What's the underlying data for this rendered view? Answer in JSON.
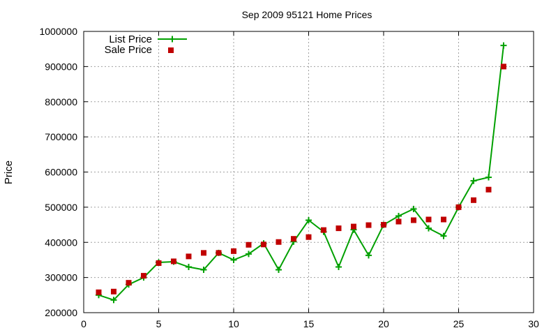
{
  "chart_data": {
    "type": "line",
    "title": "Sep 2009 95121 Home Prices",
    "xlabel": "",
    "ylabel": "Price",
    "xlim": [
      0,
      30
    ],
    "ylim": [
      200000,
      1000000
    ],
    "x_ticks": [
      0,
      5,
      10,
      15,
      20,
      25,
      30
    ],
    "y_ticks": [
      200000,
      300000,
      400000,
      500000,
      600000,
      700000,
      800000,
      900000,
      1000000
    ],
    "grid": true,
    "legend_position": "top-left",
    "series": [
      {
        "name": "List Price",
        "style": "line-with-plus-markers",
        "color": "#00a000",
        "x": [
          1,
          2,
          3,
          4,
          5,
          6,
          7,
          8,
          9,
          10,
          11,
          12,
          13,
          14,
          15,
          16,
          17,
          18,
          19,
          20,
          21,
          22,
          23,
          24,
          25,
          26,
          27,
          28
        ],
        "values": [
          250000,
          236000,
          280000,
          300000,
          343000,
          345000,
          330000,
          322000,
          370000,
          350000,
          367000,
          397000,
          322000,
          402000,
          463000,
          430000,
          330000,
          436000,
          363000,
          450000,
          475000,
          495000,
          440000,
          418000,
          500000,
          575000,
          585000,
          960000
        ]
      },
      {
        "name": "Sale Price",
        "style": "square-markers",
        "color": "#c00000",
        "x": [
          1,
          2,
          3,
          4,
          5,
          6,
          7,
          8,
          9,
          10,
          11,
          12,
          13,
          14,
          15,
          16,
          17,
          18,
          19,
          20,
          21,
          22,
          23,
          24,
          25,
          26,
          27,
          28
        ],
        "values": [
          258000,
          260000,
          285000,
          305000,
          341000,
          346000,
          360000,
          370000,
          370000,
          375000,
          393000,
          394000,
          401000,
          410000,
          415000,
          435000,
          440000,
          445000,
          449000,
          450000,
          459000,
          463000,
          465000,
          465000,
          500000,
          520000,
          550000,
          900000
        ]
      }
    ]
  }
}
